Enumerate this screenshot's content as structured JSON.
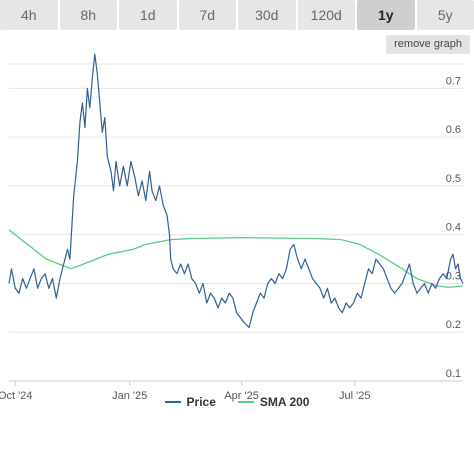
{
  "tabs": [
    {
      "label": "4h",
      "active": false
    },
    {
      "label": "8h",
      "active": false
    },
    {
      "label": "1d",
      "active": false
    },
    {
      "label": "7d",
      "active": false
    },
    {
      "label": "30d",
      "active": false
    },
    {
      "label": "120d",
      "active": false
    },
    {
      "label": "1y",
      "active": true
    },
    {
      "label": "5y",
      "active": false
    }
  ],
  "remove_graph_label": "remove graph",
  "legend": {
    "price": "Price",
    "sma": "SMA 200"
  },
  "colors": {
    "price": "#2f5f94",
    "sma": "#58cc89",
    "grid": "#e6e6e6"
  },
  "chart_data": {
    "type": "line",
    "y_axis": {
      "ticks": [
        "0.1",
        "0.2",
        "0.3",
        "0.4",
        "0.5",
        "0.6",
        "0.7"
      ],
      "ylim": [
        0.1,
        0.75
      ],
      "position": "right"
    },
    "x_axis": {
      "ticks": [
        {
          "label": "Oct '24",
          "x": "2024-10-01"
        },
        {
          "label": "Jan '25",
          "x": "2025-01-01"
        },
        {
          "label": "Apr '25",
          "x": "2025-04-01"
        },
        {
          "label": "Jul '25",
          "x": "2025-07-01"
        }
      ],
      "xlim": [
        "2024-09-26",
        "2025-09-26"
      ]
    },
    "grid": true,
    "legend_position": "bottom",
    "series": [
      {
        "name": "Price",
        "points": [
          [
            "2024-09-26",
            0.3
          ],
          [
            "2024-09-28",
            0.33
          ],
          [
            "2024-10-01",
            0.29
          ],
          [
            "2024-10-04",
            0.28
          ],
          [
            "2024-10-07",
            0.31
          ],
          [
            "2024-10-10",
            0.29
          ],
          [
            "2024-10-13",
            0.31
          ],
          [
            "2024-10-16",
            0.33
          ],
          [
            "2024-10-19",
            0.29
          ],
          [
            "2024-10-22",
            0.31
          ],
          [
            "2024-10-25",
            0.32
          ],
          [
            "2024-10-28",
            0.29
          ],
          [
            "2024-10-31",
            0.31
          ],
          [
            "2024-11-03",
            0.27
          ],
          [
            "2024-11-06",
            0.31
          ],
          [
            "2024-11-09",
            0.34
          ],
          [
            "2024-11-12",
            0.37
          ],
          [
            "2024-11-14",
            0.35
          ],
          [
            "2024-11-17",
            0.48
          ],
          [
            "2024-11-20",
            0.55
          ],
          [
            "2024-11-22",
            0.63
          ],
          [
            "2024-11-24",
            0.67
          ],
          [
            "2024-11-26",
            0.62
          ],
          [
            "2024-11-28",
            0.7
          ],
          [
            "2024-11-30",
            0.66
          ],
          [
            "2024-12-02",
            0.72
          ],
          [
            "2024-12-04",
            0.77
          ],
          [
            "2024-12-06",
            0.73
          ],
          [
            "2024-12-08",
            0.67
          ],
          [
            "2024-12-10",
            0.61
          ],
          [
            "2024-12-12",
            0.64
          ],
          [
            "2024-12-14",
            0.56
          ],
          [
            "2024-12-17",
            0.53
          ],
          [
            "2024-12-19",
            0.49
          ],
          [
            "2024-12-21",
            0.55
          ],
          [
            "2024-12-24",
            0.5
          ],
          [
            "2024-12-27",
            0.54
          ],
          [
            "2024-12-30",
            0.5
          ],
          [
            "2025-01-02",
            0.55
          ],
          [
            "2025-01-05",
            0.52
          ],
          [
            "2025-01-08",
            0.48
          ],
          [
            "2025-01-11",
            0.51
          ],
          [
            "2025-01-14",
            0.47
          ],
          [
            "2025-01-17",
            0.53
          ],
          [
            "2025-01-19",
            0.49
          ],
          [
            "2025-01-22",
            0.47
          ],
          [
            "2025-01-25",
            0.5
          ],
          [
            "2025-01-28",
            0.46
          ],
          [
            "2025-01-31",
            0.44
          ],
          [
            "2025-02-02",
            0.4
          ],
          [
            "2025-02-03",
            0.35
          ],
          [
            "2025-02-05",
            0.33
          ],
          [
            "2025-02-08",
            0.32
          ],
          [
            "2025-02-11",
            0.34
          ],
          [
            "2025-02-14",
            0.32
          ],
          [
            "2025-02-17",
            0.34
          ],
          [
            "2025-02-20",
            0.31
          ],
          [
            "2025-02-23",
            0.3
          ],
          [
            "2025-02-26",
            0.28
          ],
          [
            "2025-03-01",
            0.3
          ],
          [
            "2025-03-04",
            0.26
          ],
          [
            "2025-03-07",
            0.28
          ],
          [
            "2025-03-10",
            0.27
          ],
          [
            "2025-03-13",
            0.25
          ],
          [
            "2025-03-16",
            0.27
          ],
          [
            "2025-03-19",
            0.26
          ],
          [
            "2025-03-22",
            0.28
          ],
          [
            "2025-03-25",
            0.27
          ],
          [
            "2025-03-28",
            0.24
          ],
          [
            "2025-03-31",
            0.23
          ],
          [
            "2025-04-03",
            0.22
          ],
          [
            "2025-04-07",
            0.21
          ],
          [
            "2025-04-10",
            0.24
          ],
          [
            "2025-04-13",
            0.26
          ],
          [
            "2025-04-16",
            0.28
          ],
          [
            "2025-04-19",
            0.27
          ],
          [
            "2025-04-22",
            0.3
          ],
          [
            "2025-04-25",
            0.31
          ],
          [
            "2025-04-28",
            0.3
          ],
          [
            "2025-05-01",
            0.32
          ],
          [
            "2025-05-04",
            0.31
          ],
          [
            "2025-05-07",
            0.33
          ],
          [
            "2025-05-10",
            0.37
          ],
          [
            "2025-05-13",
            0.38
          ],
          [
            "2025-05-16",
            0.35
          ],
          [
            "2025-05-19",
            0.33
          ],
          [
            "2025-05-22",
            0.35
          ],
          [
            "2025-05-25",
            0.33
          ],
          [
            "2025-05-28",
            0.31
          ],
          [
            "2025-05-31",
            0.3
          ],
          [
            "2025-06-03",
            0.29
          ],
          [
            "2025-06-06",
            0.27
          ],
          [
            "2025-06-09",
            0.29
          ],
          [
            "2025-06-12",
            0.26
          ],
          [
            "2025-06-15",
            0.27
          ],
          [
            "2025-06-18",
            0.25
          ],
          [
            "2025-06-21",
            0.24
          ],
          [
            "2025-06-24",
            0.26
          ],
          [
            "2025-06-27",
            0.25
          ],
          [
            "2025-06-30",
            0.26
          ],
          [
            "2025-07-03",
            0.28
          ],
          [
            "2025-07-06",
            0.27
          ],
          [
            "2025-07-09",
            0.3
          ],
          [
            "2025-07-12",
            0.33
          ],
          [
            "2025-07-15",
            0.32
          ],
          [
            "2025-07-18",
            0.35
          ],
          [
            "2025-07-21",
            0.34
          ],
          [
            "2025-07-24",
            0.33
          ],
          [
            "2025-07-27",
            0.31
          ],
          [
            "2025-07-30",
            0.29
          ],
          [
            "2025-08-02",
            0.28
          ],
          [
            "2025-08-05",
            0.29
          ],
          [
            "2025-08-08",
            0.3
          ],
          [
            "2025-08-11",
            0.32
          ],
          [
            "2025-08-14",
            0.34
          ],
          [
            "2025-08-17",
            0.3
          ],
          [
            "2025-08-20",
            0.28
          ],
          [
            "2025-08-23",
            0.29
          ],
          [
            "2025-08-26",
            0.3
          ],
          [
            "2025-08-29",
            0.28
          ],
          [
            "2025-09-01",
            0.3
          ],
          [
            "2025-09-04",
            0.29
          ],
          [
            "2025-09-07",
            0.31
          ],
          [
            "2025-09-10",
            0.32
          ],
          [
            "2025-09-13",
            0.31
          ],
          [
            "2025-09-16",
            0.35
          ],
          [
            "2025-09-18",
            0.36
          ],
          [
            "2025-09-20",
            0.33
          ],
          [
            "2025-09-22",
            0.34
          ],
          [
            "2025-09-24",
            0.31
          ],
          [
            "2025-09-26",
            0.3
          ]
        ]
      },
      {
        "name": "SMA 200",
        "points": [
          [
            "2024-09-26",
            0.41
          ],
          [
            "2024-10-06",
            0.39
          ],
          [
            "2024-10-16",
            0.37
          ],
          [
            "2024-10-26",
            0.35
          ],
          [
            "2024-11-05",
            0.34
          ],
          [
            "2024-11-15",
            0.33
          ],
          [
            "2024-11-25",
            0.34
          ],
          [
            "2024-12-05",
            0.35
          ],
          [
            "2024-12-15",
            0.36
          ],
          [
            "2024-12-25",
            0.365
          ],
          [
            "2025-01-04",
            0.37
          ],
          [
            "2025-01-14",
            0.38
          ],
          [
            "2025-01-24",
            0.385
          ],
          [
            "2025-02-03",
            0.39
          ],
          [
            "2025-02-18",
            0.392
          ],
          [
            "2025-03-10",
            0.393
          ],
          [
            "2025-04-01",
            0.394
          ],
          [
            "2025-05-01",
            0.393
          ],
          [
            "2025-06-01",
            0.392
          ],
          [
            "2025-06-20",
            0.39
          ],
          [
            "2025-07-05",
            0.38
          ],
          [
            "2025-07-20",
            0.36
          ],
          [
            "2025-08-05",
            0.335
          ],
          [
            "2025-08-20",
            0.31
          ],
          [
            "2025-09-05",
            0.295
          ],
          [
            "2025-09-15",
            0.292
          ],
          [
            "2025-09-26",
            0.295
          ]
        ]
      }
    ]
  }
}
